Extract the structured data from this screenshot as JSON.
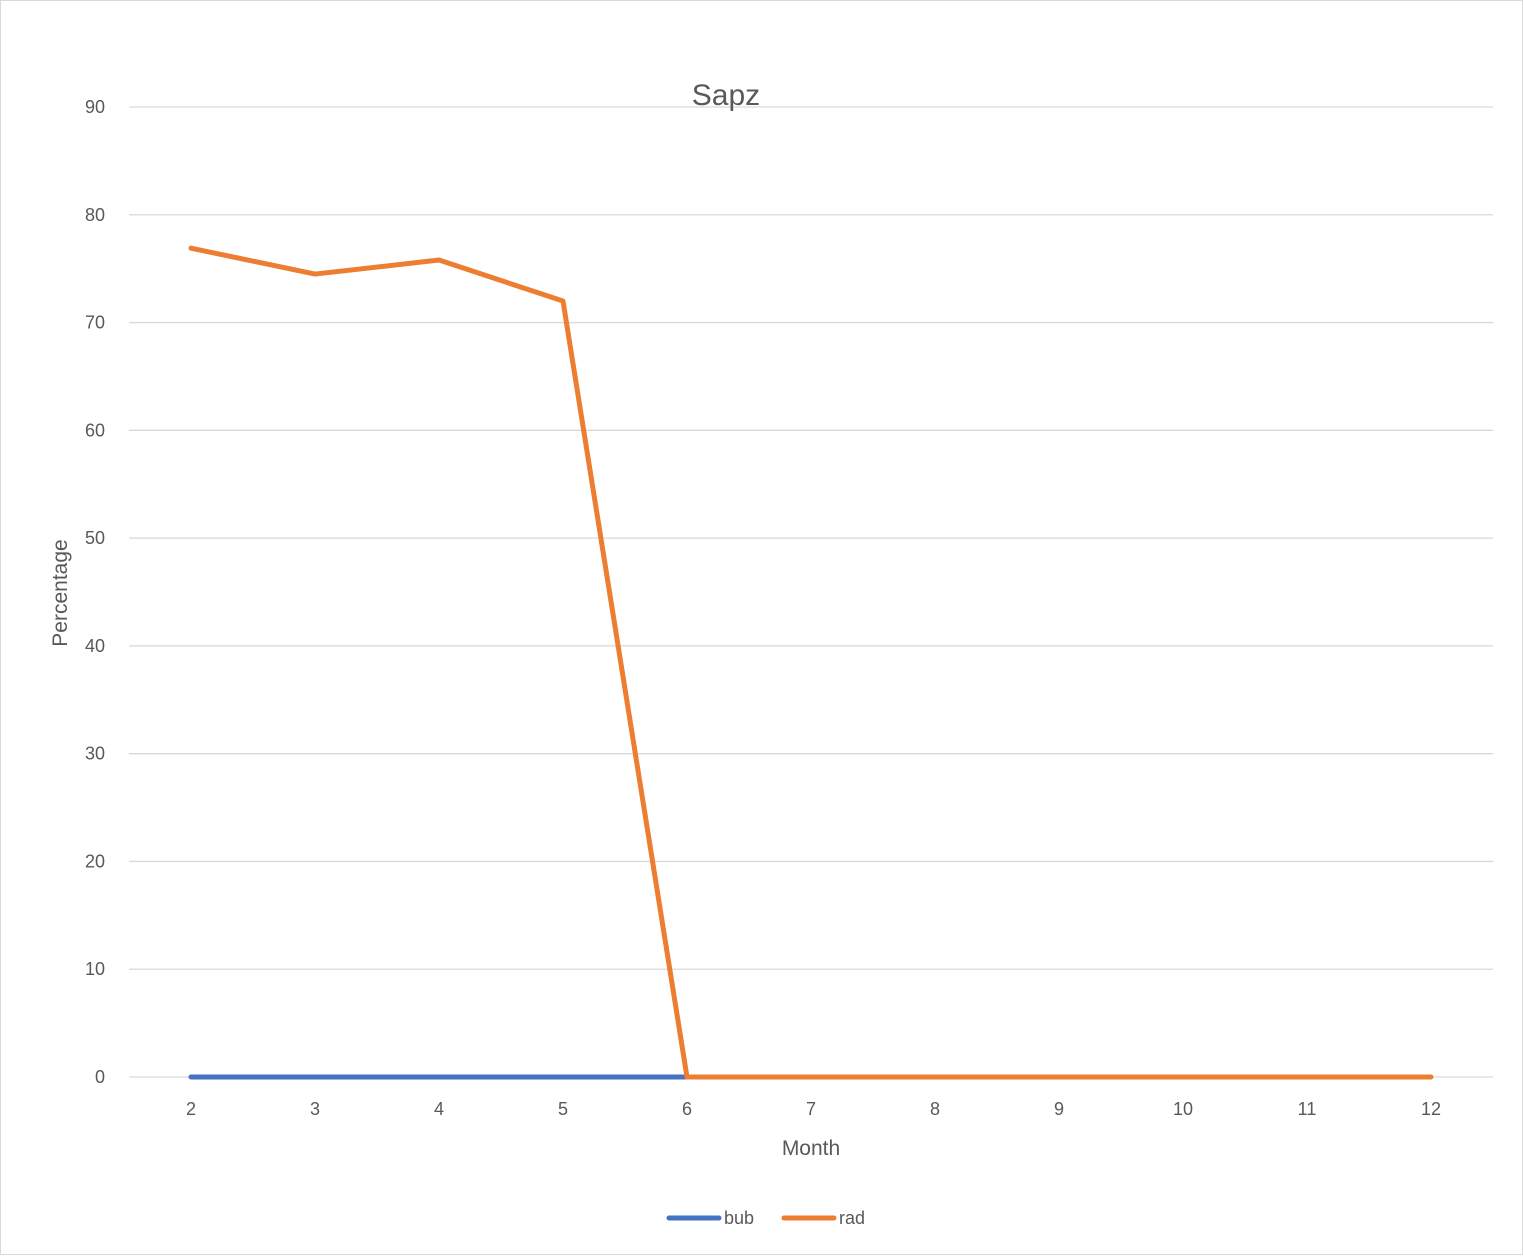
{
  "chart_data": {
    "type": "line",
    "title": "Sapz",
    "xlabel": "Month",
    "ylabel": "Percentage",
    "x": [
      2,
      3,
      4,
      5,
      6,
      7,
      8,
      9,
      10,
      11,
      12
    ],
    "ylim": [
      0,
      90
    ],
    "yticks": [
      0,
      10,
      20,
      30,
      40,
      50,
      60,
      70,
      80,
      90
    ],
    "grid": true,
    "legend_position": "bottom",
    "series": [
      {
        "name": "bub",
        "color": "#4472c4",
        "values": [
          0,
          0,
          0,
          0,
          0,
          null,
          null,
          null,
          null,
          null,
          null
        ]
      },
      {
        "name": "rad",
        "color": "#ed7d31",
        "values": [
          76.9,
          74.5,
          75.8,
          72.0,
          0,
          0,
          0,
          0,
          0,
          0,
          0
        ]
      }
    ]
  }
}
